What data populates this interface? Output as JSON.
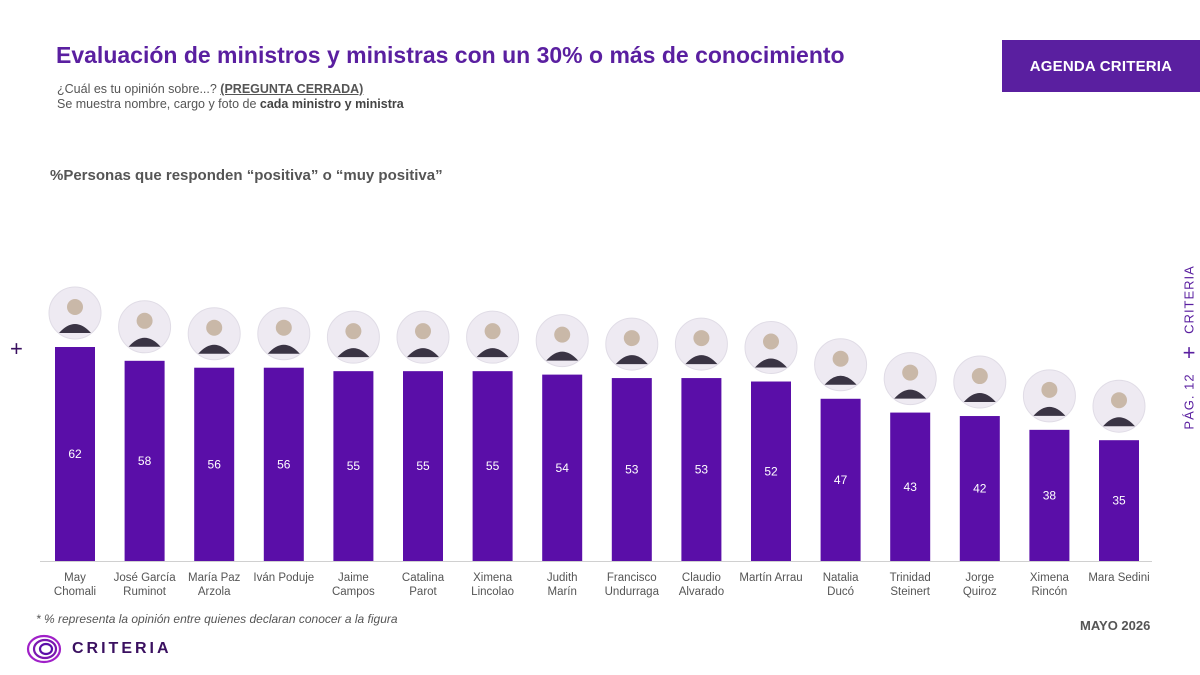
{
  "header": {
    "title": "Evaluación de ministros y ministras con un 30% o más de conocimiento",
    "question_prefix": "¿Cuál es tu opinión sobre...? ",
    "question_tag": "(PREGUNTA CERRADA)",
    "shown_prefix": "Se muestra nombre, cargo y foto de ",
    "shown_bold": "cada ministro y ministra",
    "badge": "AGENDA CRITERIA"
  },
  "side": {
    "left_plus": "+",
    "brand": "CRITERIA",
    "plus": "+",
    "page": "PÁG. 12"
  },
  "footer": {
    "footnote": "* % representa la opinión entre quienes declaran conocer a la figura",
    "date": "MAYO 2026",
    "logo_text": "CRITERIA"
  },
  "colors": {
    "bar": "#5a0ea8",
    "accent": "#5a1fa0",
    "text": "#555555"
  },
  "chart_data": {
    "type": "bar",
    "title": "%Personas que responden “positiva” o “muy positiva”",
    "categories": [
      [
        "May",
        "Chomali"
      ],
      [
        "José García",
        "Ruminot"
      ],
      [
        "María Paz",
        "Arzola"
      ],
      [
        "Iván Poduje"
      ],
      [
        "Jaime",
        "Campos"
      ],
      [
        "Catalina",
        "Parot"
      ],
      [
        "Ximena",
        "Lincolao"
      ],
      [
        "Judith",
        "Marín"
      ],
      [
        "Francisco",
        "Undurraga"
      ],
      [
        "Claudio",
        "Alvarado"
      ],
      [
        "Martín Arrau"
      ],
      [
        "Natalia",
        "Ducó"
      ],
      [
        "Trinidad",
        "Steinert"
      ],
      [
        "Jorge",
        "Quiroz"
      ],
      [
        "Ximena",
        "Rincón"
      ],
      [
        "Mara Sedini"
      ]
    ],
    "values": [
      62,
      58,
      56,
      56,
      55,
      55,
      55,
      54,
      53,
      53,
      52,
      47,
      43,
      42,
      38,
      35
    ],
    "ylim": [
      0,
      62
    ],
    "grid": false,
    "photos": "circular portrait above each bar"
  }
}
